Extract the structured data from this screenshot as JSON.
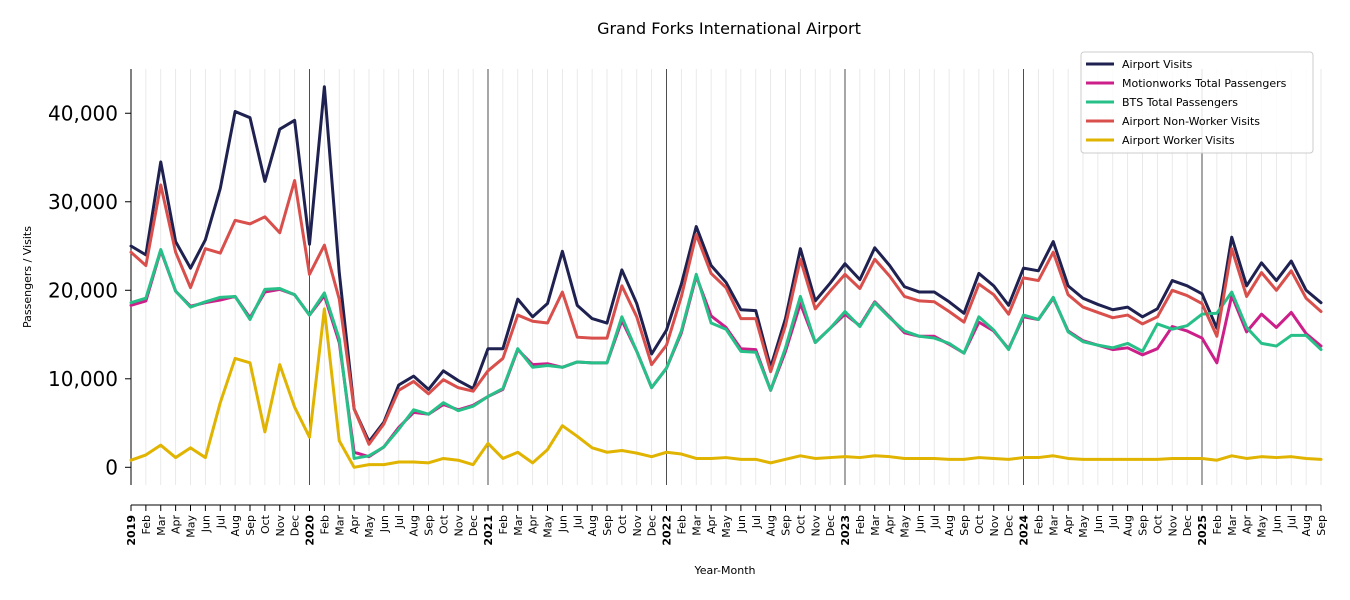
{
  "chart_data": {
    "type": "line",
    "title": "Grand Forks International Airport",
    "xlabel": "Year-Month",
    "ylabel": "Passengers / Visits",
    "ylim": [
      -2000,
      45000
    ],
    "yticks": [
      0,
      10000,
      20000,
      30000,
      40000
    ],
    "ytick_labels": [
      "0",
      "10,000",
      "20,000",
      "30,000",
      "40,000"
    ],
    "grid": "vertical minor lines per month, dark lines at year starts",
    "legend_position": "top-right",
    "month_labels": [
      "Feb",
      "Mar",
      "Apr",
      "May",
      "Jun",
      "Jul",
      "Aug",
      "Sep",
      "Oct",
      "Nov",
      "Dec"
    ],
    "years": [
      "2019",
      "2020",
      "2021",
      "2022",
      "2023",
      "2024",
      "2025"
    ],
    "x_start": "2019-01",
    "x_end": "2025-09",
    "series": [
      {
        "name": "Airport Visits",
        "color": "#1f2150",
        "values": [
          25000,
          24000,
          34500,
          25500,
          22500,
          25700,
          31500,
          40200,
          39500,
          32300,
          38200,
          39200,
          25200,
          43000,
          22000,
          6600,
          2900,
          5100,
          9300,
          10300,
          8800,
          10900,
          9800,
          8900,
          13400,
          13400,
          19000,
          17000,
          18500,
          24400,
          18300,
          16800,
          16300,
          22300,
          18500,
          12800,
          15500,
          20700,
          27200,
          22800,
          20900,
          17800,
          17700,
          11300,
          16800,
          24700,
          18800,
          20800,
          23000,
          21200,
          24800,
          22800,
          20400,
          19800,
          19800,
          18700,
          17400,
          21900,
          20500,
          18300,
          22500,
          22200,
          25500,
          20500,
          19100,
          18400,
          17800,
          18100,
          17000,
          17900,
          21100,
          20500,
          19600,
          15700,
          26000,
          20500,
          23100,
          21100,
          23300,
          20000,
          18600
        ]
      },
      {
        "name": "Motionworks Total Passengers",
        "color": "#cc1f8a",
        "values": [
          18300,
          18800,
          24500,
          19900,
          18200,
          18600,
          18900,
          19300,
          16900,
          19800,
          20100,
          19500,
          17200,
          19400,
          14100,
          1700,
          1200,
          2300,
          4500,
          6200,
          6000,
          7100,
          6500,
          7000,
          8000,
          8800,
          13300,
          11600,
          11700,
          11300,
          11900,
          11800,
          11800,
          16600,
          13100,
          9000,
          11200,
          15200,
          21600,
          17100,
          15800,
          13400,
          13300,
          8700,
          13100,
          18500,
          14100,
          15700,
          17300,
          16000,
          18700,
          17000,
          15200,
          14800,
          14800,
          13900,
          12900,
          16400,
          15400,
          13400,
          17000,
          16700,
          19100,
          15400,
          14300,
          13800,
          13300,
          13500,
          12700,
          13400,
          15900,
          15400,
          14600,
          11800,
          19400,
          15300,
          17300,
          15800,
          17500,
          15100,
          13700
        ]
      },
      {
        "name": "BTS Total Passengers",
        "color": "#27c088",
        "values": [
          18600,
          19100,
          24600,
          19900,
          18100,
          18700,
          19200,
          19300,
          16700,
          20100,
          20200,
          19500,
          17200,
          19700,
          14500,
          1000,
          1300,
          2300,
          4300,
          6500,
          6000,
          7300,
          6400,
          6900,
          8000,
          8900,
          13400,
          11300,
          11500,
          11300,
          11900,
          11800,
          11800,
          17000,
          13100,
          9000,
          11200,
          15400,
          21800,
          16300,
          15600,
          13100,
          13000,
          8700,
          13500,
          19300,
          14100,
          15700,
          17600,
          15900,
          18600,
          16900,
          15400,
          14800,
          14600,
          14000,
          12900,
          17000,
          15500,
          13300,
          17200,
          16700,
          19200,
          15300,
          14200,
          13800,
          13500,
          14000,
          13100,
          16200,
          15600,
          16000,
          17300,
          17400,
          19800,
          15800,
          14000,
          13700,
          14900,
          14900,
          13300
        ]
      },
      {
        "name": "Airport Non-Worker Visits",
        "color": "#d94f4c",
        "values": [
          24300,
          22800,
          31900,
          24300,
          20300,
          24700,
          24200,
          27900,
          27500,
          28300,
          26500,
          32400,
          21800,
          25100,
          19000,
          6600,
          2600,
          4900,
          8700,
          9700,
          8300,
          9900,
          9000,
          8600,
          10900,
          12300,
          17200,
          16500,
          16300,
          19800,
          14700,
          14600,
          14600,
          20500,
          17000,
          11600,
          13800,
          19300,
          26300,
          21900,
          20300,
          16800,
          16800,
          10800,
          16000,
          23500,
          17900,
          19900,
          21800,
          20200,
          23500,
          21600,
          19300,
          18800,
          18700,
          17600,
          16400,
          20700,
          19500,
          17300,
          21400,
          21100,
          24300,
          19500,
          18100,
          17500,
          16900,
          17200,
          16200,
          17000,
          20000,
          19400,
          18500,
          14800,
          24700,
          19300,
          22000,
          20000,
          22200,
          19100,
          17600
        ]
      },
      {
        "name": "Airport Worker Visits",
        "color": "#e0b400",
        "values": [
          800,
          1400,
          2500,
          1100,
          2200,
          1100,
          7300,
          12300,
          11800,
          4000,
          11600,
          6800,
          3400,
          17900,
          3000,
          0,
          300,
          300,
          600,
          600,
          500,
          1000,
          800,
          300,
          2700,
          1000,
          1700,
          500,
          2000,
          4700,
          3500,
          2200,
          1700,
          1900,
          1600,
          1200,
          1700,
          1500,
          1000,
          1000,
          1100,
          900,
          900,
          500,
          900,
          1300,
          1000,
          1100,
          1200,
          1100,
          1300,
          1200,
          1000,
          1000,
          1000,
          900,
          900,
          1100,
          1000,
          900,
          1100,
          1100,
          1300,
          1000,
          900,
          900,
          900,
          900,
          900,
          900,
          1000,
          1000,
          1000,
          800,
          1300,
          1000,
          1200,
          1100,
          1200,
          1000,
          900
        ]
      }
    ]
  }
}
